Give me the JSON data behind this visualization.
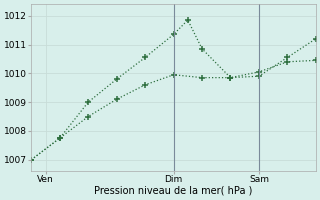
{
  "xlabel": "Pression niveau de la mer( hPa )",
  "background_color": "#d8efeb",
  "grid_color": "#c8ddd8",
  "line_color": "#2d6e3e",
  "vline_color": "#7a8a9a",
  "ylim": [
    1006.6,
    1012.4
  ],
  "yticks": [
    1007,
    1008,
    1009,
    1010,
    1011,
    1012
  ],
  "xlim": [
    0,
    10
  ],
  "line1_x": [
    0,
    1,
    2,
    3,
    4,
    5,
    5.5,
    6,
    7,
    8,
    9,
    10
  ],
  "line1_y": [
    1007.0,
    1007.75,
    1009.0,
    1009.8,
    1010.55,
    1011.35,
    1011.85,
    1010.85,
    1009.85,
    1009.9,
    1010.55,
    1011.2
  ],
  "line2_x": [
    0,
    1,
    2,
    3,
    4,
    5,
    6,
    7,
    8,
    9,
    10
  ],
  "line2_y": [
    1007.0,
    1007.75,
    1008.5,
    1009.1,
    1009.6,
    1009.95,
    1009.85,
    1009.85,
    1010.05,
    1010.4,
    1010.45
  ],
  "vline_x1": 5,
  "vline_x2": 8,
  "xtick_positions": [
    0.5,
    5,
    8
  ],
  "xtick_labels": [
    "Ven",
    "Dim",
    "Sam"
  ]
}
